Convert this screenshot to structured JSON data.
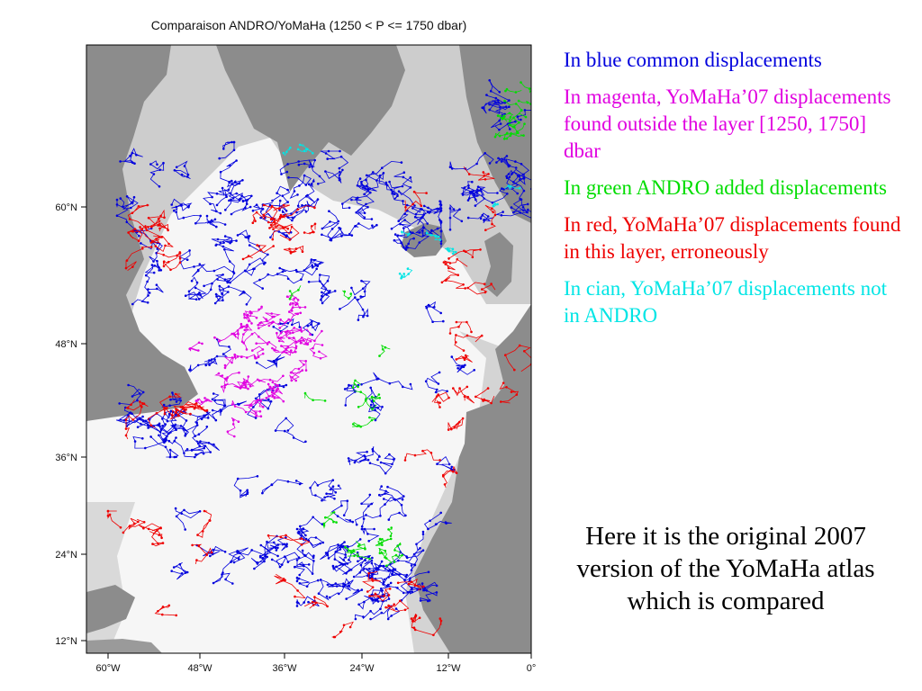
{
  "map": {
    "title": "Comparaison ANDRO/YoMaHa (1250 < P <= 1750 dbar)",
    "lon_ticks": [
      "60°W",
      "48°W",
      "36°W",
      "24°W",
      "12°W",
      "0°"
    ],
    "lat_ticks": [
      "60°N",
      "48°N",
      "36°N",
      "24°N",
      "12°N"
    ],
    "colors": {
      "common": "#0000dd",
      "yomaha_outside": "#e000e0",
      "andro_added": "#00dd00",
      "yomaha_erroneous": "#ee0000",
      "yomaha_not_in_andro": "#00e5e5",
      "land": "#8c8c8c",
      "shelf": "#c8c8c8",
      "ocean": "#f6f6f6"
    }
  },
  "legend": {
    "blue": "In blue common displacements",
    "magenta": "In magenta, YoMaHa’07 displacements found outside the layer [1250, 1750] dbar",
    "green": "In green ANDRO added displacements",
    "red": "In red, YoMaHa’07 displacements found in this layer, erroneously",
    "cyan": "In cian, YoMaHa’07 displacements not in ANDRO"
  },
  "caption": "Here it is the original 2007 version of the YoMaHa atlas which is compared"
}
